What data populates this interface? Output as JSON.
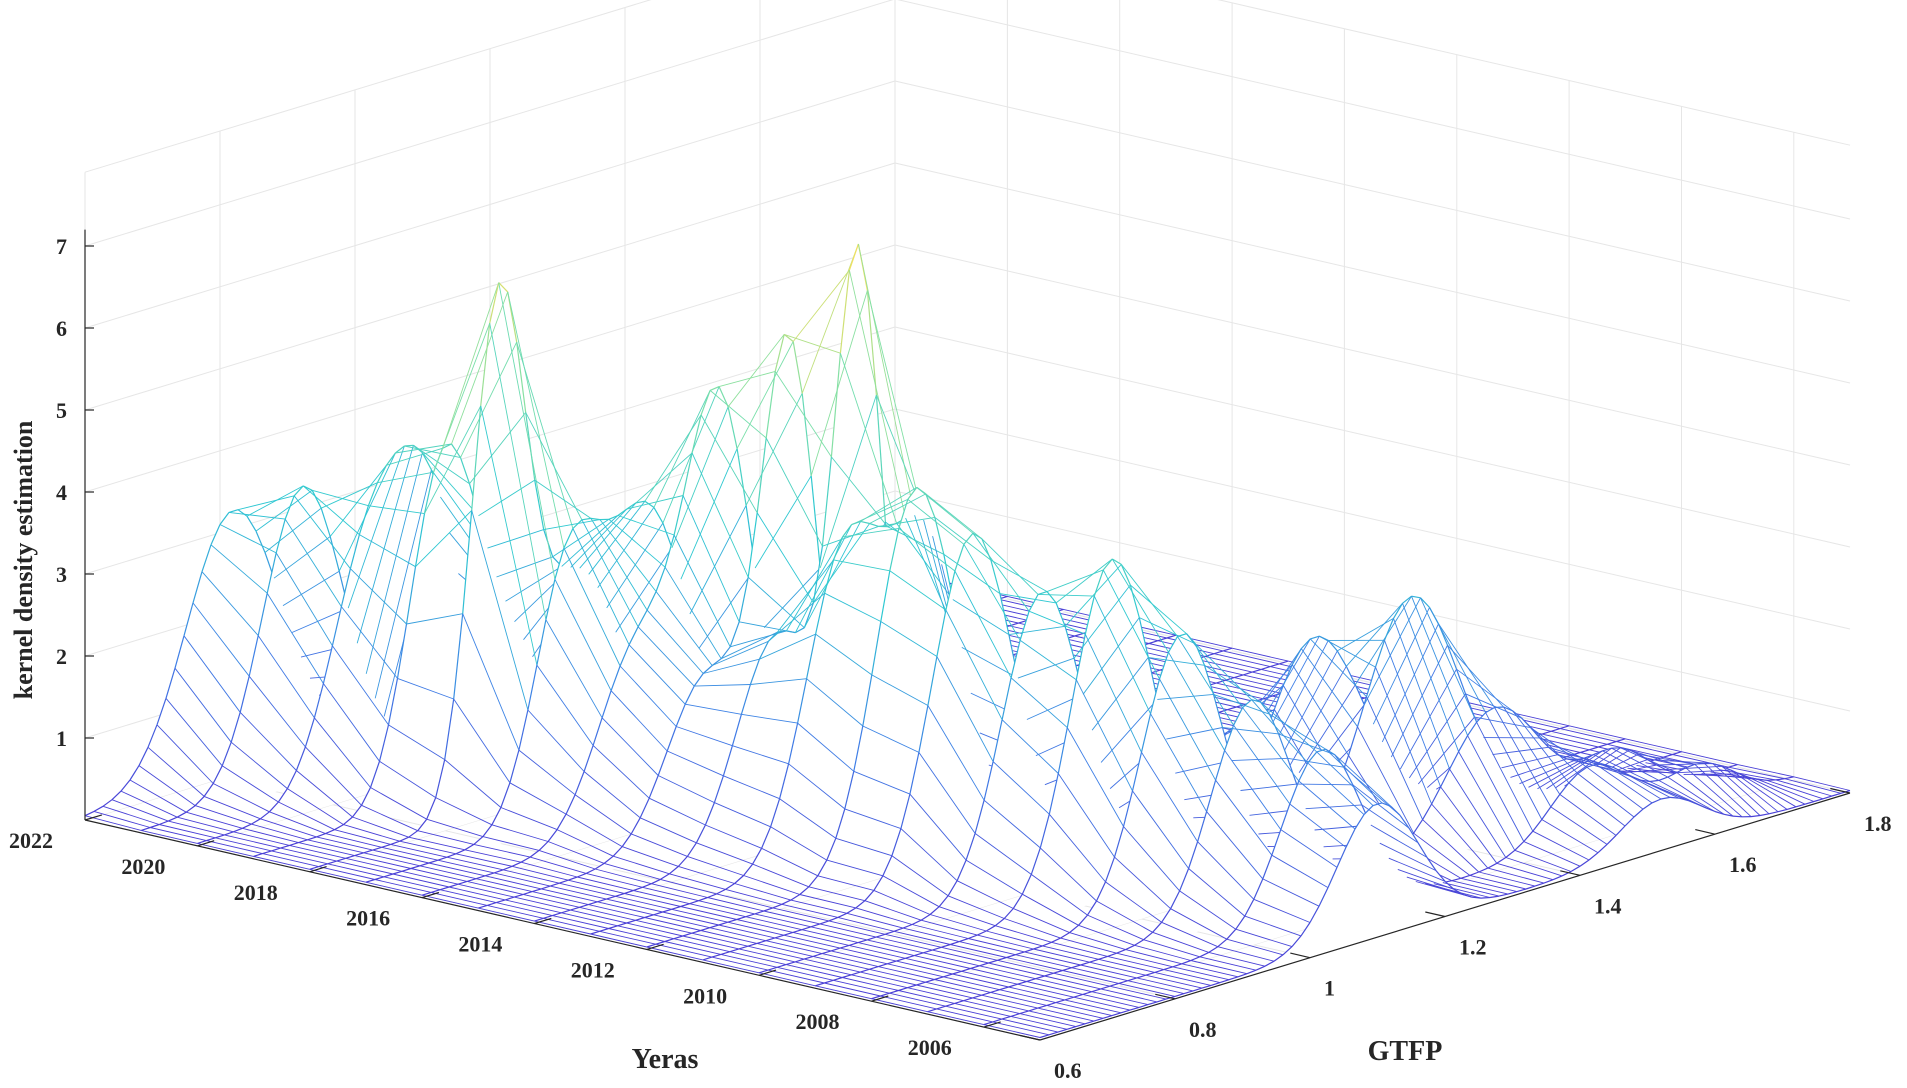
{
  "chart_data": {
    "type": "surface",
    "style": "3d-mesh-ridges",
    "title": "",
    "xlabel": "GTFP",
    "ylabel": "Yeras",
    "zlabel": "kernel density estimation",
    "x_ticks": [
      "0.6",
      "0.8",
      "1",
      "1.2",
      "1.4",
      "1.6",
      "1.8"
    ],
    "y_ticks": [
      "2022",
      "2020",
      "2018",
      "2016",
      "2014",
      "2012",
      "2010",
      "2008",
      "2006"
    ],
    "z_ticks": [
      "1",
      "2",
      "3",
      "4",
      "5",
      "6",
      "7"
    ],
    "xlim": [
      0.6,
      1.8
    ],
    "ylim": [
      2005,
      2022
    ],
    "zlim": [
      0,
      7
    ],
    "grid": true,
    "colormap": [
      "#4a3fd6",
      "#3f7fe6",
      "#2ec8d2",
      "#7ee0a8",
      "#f0e060"
    ],
    "series": [
      {
        "year": 2022,
        "peaks": [
          {
            "x": 0.82,
            "height": 3.2,
            "width": 0.07
          }
        ]
      },
      {
        "year": 2021,
        "peaks": [
          {
            "x": 0.84,
            "height": 3.6,
            "width": 0.06
          }
        ]
      },
      {
        "year": 2020,
        "peaks": [
          {
            "x": 0.86,
            "height": 3.1,
            "width": 0.06
          },
          {
            "x": 0.95,
            "height": 2.6,
            "width": 0.05
          }
        ]
      },
      {
        "year": 2019,
        "peaks": [
          {
            "x": 0.88,
            "height": 3.9,
            "width": 0.05
          },
          {
            "x": 0.98,
            "height": 1.5,
            "width": 0.06
          }
        ]
      },
      {
        "year": 2018,
        "peaks": [
          {
            "x": 0.88,
            "height": 6.1,
            "width": 0.04
          },
          {
            "x": 1.0,
            "height": 2.6,
            "width": 0.06
          }
        ]
      },
      {
        "year": 2017,
        "peaks": [
          {
            "x": 0.9,
            "height": 3.0,
            "width": 0.05
          },
          {
            "x": 1.02,
            "height": 3.4,
            "width": 0.06
          }
        ]
      },
      {
        "year": 2016,
        "peaks": [
          {
            "x": 0.92,
            "height": 2.2,
            "width": 0.06
          },
          {
            "x": 1.04,
            "height": 4.8,
            "width": 0.05
          }
        ]
      },
      {
        "year": 2015,
        "peaks": [
          {
            "x": 0.94,
            "height": 2.0,
            "width": 0.06
          },
          {
            "x": 1.06,
            "height": 5.6,
            "width": 0.04
          }
        ]
      },
      {
        "year": 2014,
        "peaks": [
          {
            "x": 0.96,
            "height": 2.6,
            "width": 0.06
          },
          {
            "x": 1.08,
            "height": 6.7,
            "width": 0.035
          }
        ]
      },
      {
        "year": 2013,
        "peaks": [
          {
            "x": 0.98,
            "height": 3.8,
            "width": 0.06
          },
          {
            "x": 1.1,
            "height": 3.2,
            "width": 0.05
          }
        ]
      },
      {
        "year": 2012,
        "peaks": [
          {
            "x": 1.0,
            "height": 4.6,
            "width": 0.06
          }
        ]
      },
      {
        "year": 2011,
        "peaks": [
          {
            "x": 1.0,
            "height": 4.2,
            "width": 0.06
          }
        ]
      },
      {
        "year": 2010,
        "peaks": [
          {
            "x": 1.02,
            "height": 3.6,
            "width": 0.06
          },
          {
            "x": 1.3,
            "height": 1.2,
            "width": 0.07
          }
        ]
      },
      {
        "year": 2009,
        "peaks": [
          {
            "x": 1.04,
            "height": 4.1,
            "width": 0.06
          },
          {
            "x": 1.34,
            "height": 2.4,
            "width": 0.07
          }
        ]
      },
      {
        "year": 2008,
        "peaks": [
          {
            "x": 1.06,
            "height": 3.3,
            "width": 0.06
          },
          {
            "x": 1.4,
            "height": 2.9,
            "width": 0.07
          }
        ]
      },
      {
        "year": 2007,
        "peaks": [
          {
            "x": 1.08,
            "height": 2.6,
            "width": 0.06
          },
          {
            "x": 1.44,
            "height": 1.6,
            "width": 0.07
          },
          {
            "x": 1.62,
            "height": 0.6,
            "width": 0.05
          }
        ]
      },
      {
        "year": 2006,
        "peaks": [
          {
            "x": 1.1,
            "height": 2.1,
            "width": 0.06
          },
          {
            "x": 1.5,
            "height": 0.9,
            "width": 0.06
          },
          {
            "x": 1.66,
            "height": 0.5,
            "width": 0.05
          }
        ]
      },
      {
        "year": 2005,
        "peaks": [
          {
            "x": 1.1,
            "height": 1.6,
            "width": 0.06
          },
          {
            "x": 1.52,
            "height": 0.6,
            "width": 0.06
          }
        ]
      }
    ]
  }
}
